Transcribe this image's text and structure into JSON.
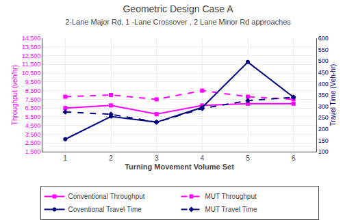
{
  "chart_data": {
    "type": "line",
    "title": "Geometric Design Case A",
    "subtitle": "2-Lane Major Rd, 1 -Lane Crossover , 2 Lane Minor Rd approaches",
    "xlabel": "Turning Movement Volume Set",
    "ylabel": "Throughput (veh/hr)",
    "y2label": "Travel Time (Veh-hr)",
    "x": [
      1,
      2,
      3,
      4,
      5,
      6
    ],
    "xlim": [
      0.5,
      6.5
    ],
    "xticks": [
      1,
      2,
      3,
      4,
      5,
      6
    ],
    "ylim": [
      1500,
      14500
    ],
    "yticks": [
      {
        "value": 1500,
        "label": "1,500"
      },
      {
        "value": 2500,
        "label": "2,500"
      },
      {
        "value": 3500,
        "label": "3,500"
      },
      {
        "value": 4500,
        "label": "4,500"
      },
      {
        "value": 5500,
        "label": "5,500"
      },
      {
        "value": 6500,
        "label": "6,500"
      },
      {
        "value": 7500,
        "label": "7,500"
      },
      {
        "value": 8500,
        "label": "8,500"
      },
      {
        "value": 9500,
        "label": "9,500"
      },
      {
        "value": 10500,
        "label": "10,500"
      },
      {
        "value": 11500,
        "label": "11,500"
      },
      {
        "value": 12500,
        "label": "12,500"
      },
      {
        "value": 13500,
        "label": "13,500"
      },
      {
        "value": 14500,
        "label": "14,500"
      }
    ],
    "y2lim": [
      100,
      600
    ],
    "y2ticks": [
      100,
      150,
      200,
      250,
      300,
      350,
      400,
      450,
      500,
      550,
      600
    ],
    "grid": true,
    "legend": "bottom",
    "series": [
      {
        "name": "Conventional Throughput",
        "color": "#FF00FF",
        "marker": "square",
        "line_style": "solid",
        "values": [
          6500,
          6800,
          5800,
          6800,
          7000,
          7000
        ]
      },
      {
        "name": "MUT Throughput",
        "color": "#FF00FF",
        "marker": "square",
        "line_style": "dashed",
        "values": [
          7800,
          8000,
          7500,
          8500,
          7800,
          7500
        ]
      },
      {
        "name": "Coventional Travel Time",
        "color": "#000080",
        "marker": "circle",
        "line_style": "solid",
        "axis": "y2",
        "values": [
          155,
          255,
          230,
          295,
          495,
          340
        ]
      },
      {
        "name": "MUT Travel Time",
        "color": "#000080",
        "marker": "diamond",
        "line_style": "dashed",
        "axis": "y2",
        "values": [
          275,
          265,
          230,
          290,
          325,
          340
        ]
      }
    ]
  }
}
